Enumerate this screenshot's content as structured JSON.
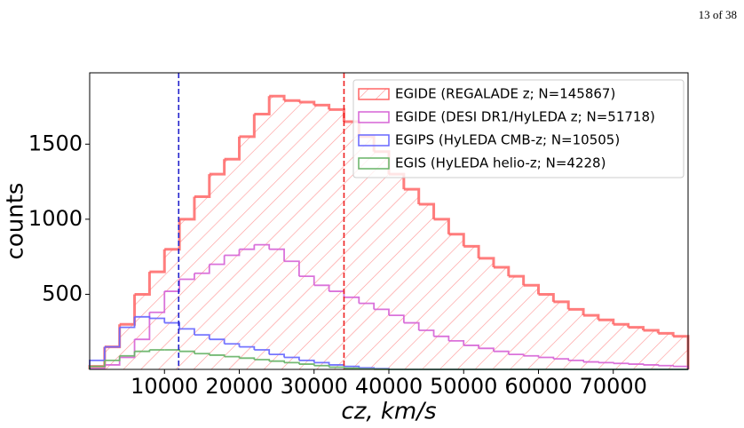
{
  "page_number": "13 of 38",
  "chart_data": {
    "type": "histogram",
    "xlabel": "cz, km/s",
    "ylabel": "counts",
    "bins": [
      0,
      2000,
      4000,
      6000,
      8000,
      10000,
      12000,
      14000,
      16000,
      18000,
      20000,
      22000,
      24000,
      26000,
      28000,
      30000,
      32000,
      34000,
      36000,
      38000,
      40000,
      42000,
      44000,
      46000,
      48000,
      50000,
      52000,
      54000,
      56000,
      58000,
      60000,
      62000,
      64000,
      66000,
      68000,
      70000,
      72000,
      74000,
      76000,
      78000,
      80000
    ],
    "series": [
      {
        "name": "EGIDE (REGALADE z; N=145867)",
        "color": "#ff6666",
        "hatch": true,
        "values": [
          20,
          150,
          300,
          500,
          650,
          800,
          1000,
          1150,
          1300,
          1400,
          1550,
          1700,
          1820,
          1790,
          1780,
          1760,
          1730,
          1650,
          1550,
          1450,
          1300,
          1200,
          1100,
          1000,
          900,
          820,
          740,
          680,
          620,
          560,
          500,
          450,
          400,
          360,
          330,
          300,
          280,
          260,
          240,
          220
        ]
      },
      {
        "name": "EGIDE (DESI DR1/HyLEDA z; N=51718)",
        "color": "#d663d6",
        "hatch": false,
        "values": [
          5,
          30,
          80,
          200,
          380,
          520,
          600,
          640,
          700,
          760,
          800,
          830,
          800,
          720,
          620,
          560,
          520,
          480,
          440,
          400,
          360,
          310,
          260,
          220,
          190,
          160,
          140,
          120,
          100,
          90,
          80,
          70,
          60,
          50,
          45,
          40,
          35,
          30,
          25,
          20
        ]
      },
      {
        "name": "EGIPS (HyLEDA CMB-z; N=10505)",
        "color": "#6666ff",
        "hatch": false,
        "values": [
          60,
          150,
          280,
          350,
          340,
          310,
          270,
          230,
          200,
          170,
          150,
          130,
          100,
          80,
          60,
          45,
          30,
          20,
          10,
          5,
          0,
          0,
          0,
          0,
          0,
          0,
          0,
          0,
          0,
          0,
          0,
          0,
          0,
          0,
          0,
          0,
          0,
          0,
          0,
          0
        ]
      },
      {
        "name": "EGIS (HyLEDA helio-z; N=4228)",
        "color": "#66b366",
        "hatch": false,
        "values": [
          20,
          60,
          90,
          120,
          130,
          130,
          120,
          105,
          95,
          85,
          75,
          65,
          55,
          45,
          35,
          25,
          15,
          8,
          3,
          1,
          0,
          0,
          0,
          0,
          0,
          0,
          0,
          0,
          0,
          0,
          0,
          0,
          0,
          0,
          0,
          0,
          0,
          0,
          0,
          0
        ]
      }
    ],
    "vlines": [
      {
        "value": 11900,
        "color": "#2222cc"
      },
      {
        "value": 34000,
        "color": "#ee2222"
      }
    ],
    "xlim": [
      0,
      80000
    ],
    "ylim": [
      0,
      1975
    ],
    "xticks": [
      10000,
      20000,
      30000,
      40000,
      50000,
      60000,
      70000
    ],
    "yticks": [
      500,
      1000,
      1500
    ],
    "legend": "upper right"
  }
}
